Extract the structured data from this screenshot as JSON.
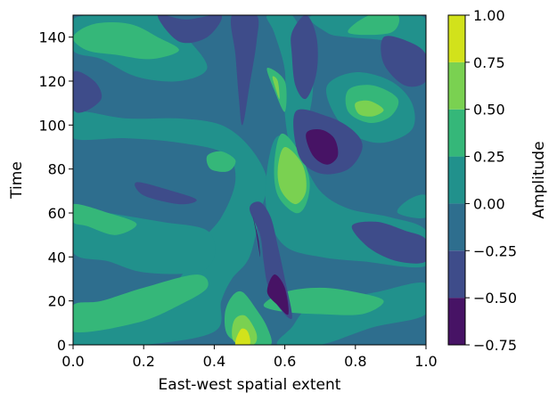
{
  "chart_data": {
    "type": "contour",
    "title": "",
    "xlabel": "East-west spatial extent",
    "ylabel": "Time",
    "xlim": [
      0.0,
      1.0
    ],
    "ylim": [
      0,
      150
    ],
    "x_ticks": [
      "0.0",
      "0.2",
      "0.4",
      "0.6",
      "0.8",
      "1.0"
    ],
    "y_ticks": [
      "0",
      "20",
      "40",
      "60",
      "80",
      "100",
      "120",
      "140"
    ],
    "colorbar": {
      "label": "Amplitude",
      "levels": [
        -0.75,
        -0.5,
        -0.25,
        0.0,
        0.25,
        0.5,
        0.75,
        1.0
      ],
      "tick_labels": [
        "−0.75",
        "−0.50",
        "−0.25",
        "0.00",
        "0.25",
        "0.50",
        "0.75",
        "1.00"
      ],
      "colors": [
        "#471365",
        "#3e4c8a",
        "#2e6e8e",
        "#21918c",
        "#35b779",
        "#7ad151",
        "#d2e21b"
      ]
    },
    "background_level_color": "#2e6e8e",
    "regions": [
      {
        "label": "band",
        "color": "#21918c",
        "points": [
          [
            0.0,
            0
          ],
          [
            0.2,
            0
          ],
          [
            0.4,
            6
          ],
          [
            0.42,
            20
          ],
          [
            0.45,
            30
          ],
          [
            0.5,
            40
          ],
          [
            0.53,
            60
          ],
          [
            0.55,
            75
          ],
          [
            0.5,
            90
          ],
          [
            0.42,
            100
          ],
          [
            0.3,
            103
          ],
          [
            0.15,
            103
          ],
          [
            0.0,
            106
          ],
          [
            0.0,
            94
          ],
          [
            0.15,
            94
          ],
          [
            0.3,
            92
          ],
          [
            0.43,
            87
          ],
          [
            0.46,
            75
          ],
          [
            0.42,
            58
          ],
          [
            0.35,
            45
          ],
          [
            0.3,
            30
          ],
          [
            0.2,
            18
          ],
          [
            0.0,
            6
          ]
        ]
      },
      {
        "label": "band",
        "color": "#21918c",
        "points": [
          [
            0.0,
            42
          ],
          [
            0.1,
            38
          ],
          [
            0.2,
            33
          ],
          [
            0.35,
            33
          ],
          [
            0.4,
            40
          ],
          [
            0.38,
            52
          ],
          [
            0.25,
            56
          ],
          [
            0.1,
            60
          ],
          [
            0.0,
            62
          ]
        ]
      },
      {
        "label": "band",
        "color": "#21918c",
        "points": [
          [
            0.0,
            148
          ],
          [
            0.1,
            150
          ],
          [
            0.25,
            150
          ],
          [
            0.32,
            140
          ],
          [
            0.38,
            126
          ],
          [
            0.3,
            120
          ],
          [
            0.18,
            122
          ],
          [
            0.08,
            130
          ],
          [
            0.0,
            134
          ]
        ]
      },
      {
        "label": "band",
        "color": "#21918c",
        "points": [
          [
            0.55,
            150
          ],
          [
            0.62,
            150
          ],
          [
            0.66,
            135
          ],
          [
            0.68,
            118
          ],
          [
            0.66,
            100
          ],
          [
            0.62,
            90
          ],
          [
            0.6,
            105
          ],
          [
            0.6,
            125
          ],
          [
            0.57,
            142
          ]
        ]
      },
      {
        "label": "band",
        "color": "#21918c",
        "points": [
          [
            0.68,
            150
          ],
          [
            0.92,
            150
          ],
          [
            1.0,
            148
          ],
          [
            1.0,
            132
          ],
          [
            0.9,
            138
          ],
          [
            0.78,
            140
          ],
          [
            0.72,
            142
          ]
        ]
      },
      {
        "label": "band",
        "color": "#21918c",
        "points": [
          [
            0.72,
            118
          ],
          [
            0.8,
            124
          ],
          [
            0.9,
            120
          ],
          [
            0.96,
            110
          ],
          [
            0.96,
            98
          ],
          [
            0.88,
            92
          ],
          [
            0.8,
            95
          ],
          [
            0.74,
            105
          ]
        ]
      },
      {
        "label": "band",
        "color": "#21918c",
        "points": [
          [
            0.58,
            95
          ],
          [
            0.55,
            80
          ],
          [
            0.55,
            60
          ],
          [
            0.6,
            45
          ],
          [
            0.7,
            40
          ],
          [
            0.82,
            38
          ],
          [
            1.0,
            36
          ],
          [
            1.0,
            52
          ],
          [
            0.9,
            58
          ],
          [
            0.78,
            62
          ],
          [
            0.7,
            70
          ],
          [
            0.64,
            86
          ]
        ]
      },
      {
        "label": "band",
        "color": "#21918c",
        "points": [
          [
            0.58,
            0
          ],
          [
            0.7,
            0
          ],
          [
            0.85,
            8
          ],
          [
            1.0,
            14
          ],
          [
            1.0,
            28
          ],
          [
            0.86,
            24
          ],
          [
            0.74,
            20
          ],
          [
            0.66,
            16
          ],
          [
            0.62,
            8
          ]
        ]
      },
      {
        "label": "band",
        "color": "#21918c",
        "points": [
          [
            0.92,
            60
          ],
          [
            1.0,
            58
          ],
          [
            1.0,
            68
          ],
          [
            0.95,
            66
          ]
        ]
      },
      {
        "label": "band",
        "color": "#35b779",
        "points": [
          [
            0.0,
            6
          ],
          [
            0.18,
            10
          ],
          [
            0.3,
            18
          ],
          [
            0.38,
            26
          ],
          [
            0.35,
            32
          ],
          [
            0.2,
            26
          ],
          [
            0.08,
            20
          ],
          [
            0.0,
            18
          ]
        ]
      },
      {
        "label": "band",
        "color": "#35b779",
        "points": [
          [
            0.0,
            64
          ],
          [
            0.1,
            60
          ],
          [
            0.18,
            55
          ],
          [
            0.12,
            50
          ],
          [
            0.04,
            54
          ],
          [
            0.0,
            56
          ]
        ]
      },
      {
        "label": "band",
        "color": "#35b779",
        "points": [
          [
            0.0,
            140
          ],
          [
            0.06,
            146
          ],
          [
            0.16,
            146
          ],
          [
            0.24,
            140
          ],
          [
            0.3,
            134
          ],
          [
            0.22,
            130
          ],
          [
            0.12,
            132
          ],
          [
            0.04,
            134
          ]
        ]
      },
      {
        "label": "band",
        "color": "#35b779",
        "points": [
          [
            0.59,
            96
          ],
          [
            0.57,
            82
          ],
          [
            0.58,
            68
          ],
          [
            0.63,
            60
          ],
          [
            0.66,
            64
          ],
          [
            0.67,
            75
          ],
          [
            0.64,
            88
          ]
        ]
      },
      {
        "label": "band",
        "color": "#35b779",
        "points": [
          [
            0.78,
            116
          ],
          [
            0.85,
            118
          ],
          [
            0.92,
            112
          ],
          [
            0.9,
            104
          ],
          [
            0.84,
            101
          ],
          [
            0.78,
            106
          ]
        ]
      },
      {
        "label": "band",
        "color": "#35b779",
        "points": [
          [
            0.43,
            14
          ],
          [
            0.44,
            4
          ],
          [
            0.5,
            0
          ],
          [
            0.56,
            0
          ],
          [
            0.55,
            8
          ],
          [
            0.52,
            16
          ],
          [
            0.48,
            24
          ],
          [
            0.45,
            22
          ]
        ]
      },
      {
        "label": "band",
        "color": "#35b779",
        "points": [
          [
            0.38,
            86
          ],
          [
            0.42,
            88
          ],
          [
            0.46,
            84
          ],
          [
            0.44,
            79
          ],
          [
            0.39,
            80
          ]
        ]
      },
      {
        "label": "band",
        "color": "#35b779",
        "points": [
          [
            0.55,
            126
          ],
          [
            0.57,
            116
          ],
          [
            0.6,
            106
          ],
          [
            0.6,
            120
          ]
        ]
      },
      {
        "label": "band",
        "color": "#35b779",
        "points": [
          [
            0.78,
            142
          ],
          [
            0.84,
            150
          ],
          [
            0.92,
            150
          ],
          [
            0.9,
            142
          ]
        ]
      },
      {
        "label": "band",
        "color": "#35b779",
        "points": [
          [
            0.54,
            18
          ],
          [
            0.6,
            24
          ],
          [
            0.7,
            26
          ],
          [
            0.8,
            24
          ],
          [
            0.88,
            20
          ],
          [
            0.82,
            14
          ],
          [
            0.7,
            14
          ],
          [
            0.6,
            15
          ]
        ]
      },
      {
        "label": "band",
        "color": "#7ad151",
        "points": [
          [
            0.6,
            90
          ],
          [
            0.58,
            80
          ],
          [
            0.59,
            70
          ],
          [
            0.63,
            64
          ],
          [
            0.66,
            70
          ],
          [
            0.65,
            82
          ]
        ]
      },
      {
        "label": "band",
        "color": "#7ad151",
        "points": [
          [
            0.8,
            110
          ],
          [
            0.84,
            111
          ],
          [
            0.88,
            107
          ],
          [
            0.85,
            104
          ],
          [
            0.81,
            105
          ]
        ]
      },
      {
        "label": "band",
        "color": "#7ad151",
        "points": [
          [
            0.45,
            6
          ],
          [
            0.46,
            1
          ],
          [
            0.51,
            0
          ],
          [
            0.52,
            5
          ],
          [
            0.49,
            13
          ],
          [
            0.46,
            12
          ]
        ]
      },
      {
        "label": "band",
        "color": "#7ad151",
        "points": [
          [
            0.565,
            122
          ],
          [
            0.575,
            116
          ],
          [
            0.585,
            112
          ],
          [
            0.58,
            120
          ]
        ]
      },
      {
        "label": "band",
        "color": "#d2e21b",
        "points": [
          [
            0.46,
            0
          ],
          [
            0.5,
            0
          ],
          [
            0.495,
            6
          ],
          [
            0.475,
            7
          ]
        ]
      },
      {
        "label": "band",
        "color": "#3e4c8a",
        "points": [
          [
            0.45,
            150
          ],
          [
            0.52,
            150
          ],
          [
            0.52,
            138
          ],
          [
            0.5,
            118
          ],
          [
            0.48,
            100
          ],
          [
            0.47,
            112
          ],
          [
            0.46,
            132
          ]
        ]
      },
      {
        "label": "band",
        "color": "#3e4c8a",
        "points": [
          [
            0.24,
            150
          ],
          [
            0.32,
            148
          ],
          [
            0.42,
            150
          ],
          [
            0.38,
            140
          ],
          [
            0.3,
            138
          ]
        ]
      },
      {
        "label": "band",
        "color": "#3e4c8a",
        "points": [
          [
            0.62,
            142
          ],
          [
            0.66,
            150
          ],
          [
            0.69,
            140
          ],
          [
            0.69,
            124
          ],
          [
            0.66,
            112
          ],
          [
            0.63,
            118
          ],
          [
            0.62,
            132
          ]
        ]
      },
      {
        "label": "band",
        "color": "#3e4c8a",
        "points": [
          [
            0.63,
            106
          ],
          [
            0.72,
            104
          ],
          [
            0.79,
            98
          ],
          [
            0.82,
            90
          ],
          [
            0.78,
            80
          ],
          [
            0.7,
            78
          ],
          [
            0.64,
            86
          ]
        ]
      },
      {
        "label": "band",
        "color": "#3e4c8a",
        "points": [
          [
            0.88,
            140
          ],
          [
            0.95,
            138
          ],
          [
            1.0,
            132
          ],
          [
            1.0,
            120
          ],
          [
            0.94,
            118
          ],
          [
            0.88,
            128
          ]
        ]
      },
      {
        "label": "band",
        "color": "#3e4c8a",
        "points": [
          [
            0.0,
            124
          ],
          [
            0.06,
            120
          ],
          [
            0.08,
            112
          ],
          [
            0.03,
            106
          ],
          [
            0.0,
            108
          ]
        ]
      },
      {
        "label": "band",
        "color": "#3e4c8a",
        "points": [
          [
            0.18,
            74
          ],
          [
            0.28,
            70
          ],
          [
            0.35,
            66
          ],
          [
            0.3,
            64
          ],
          [
            0.2,
            68
          ]
        ]
      },
      {
        "label": "band",
        "color": "#3e4c8a",
        "points": [
          [
            0.5,
            62
          ],
          [
            0.53,
            50
          ],
          [
            0.54,
            38
          ],
          [
            0.55,
            28
          ],
          [
            0.57,
            20
          ],
          [
            0.62,
            12
          ],
          [
            0.6,
            30
          ],
          [
            0.58,
            45
          ],
          [
            0.56,
            58
          ],
          [
            0.53,
            65
          ]
        ]
      },
      {
        "label": "band",
        "color": "#3e4c8a",
        "points": [
          [
            0.79,
            54
          ],
          [
            0.86,
            56
          ],
          [
            0.94,
            52
          ],
          [
            1.0,
            48
          ],
          [
            1.0,
            38
          ],
          [
            0.92,
            38
          ],
          [
            0.84,
            44
          ]
        ]
      },
      {
        "label": "band",
        "color": "#471365",
        "points": [
          [
            0.51,
            58
          ],
          [
            0.525,
            48
          ],
          [
            0.53,
            40
          ],
          [
            0.52,
            50
          ]
        ]
      },
      {
        "label": "band",
        "color": "#471365",
        "points": [
          [
            0.55,
            24
          ],
          [
            0.58,
            18
          ],
          [
            0.61,
            14
          ],
          [
            0.6,
            26
          ],
          [
            0.57,
            32
          ]
        ]
      },
      {
        "label": "band",
        "color": "#471365",
        "points": [
          [
            0.66,
            96
          ],
          [
            0.7,
            98
          ],
          [
            0.74,
            94
          ],
          [
            0.75,
            86
          ],
          [
            0.72,
            82
          ],
          [
            0.68,
            86
          ]
        ]
      }
    ]
  }
}
